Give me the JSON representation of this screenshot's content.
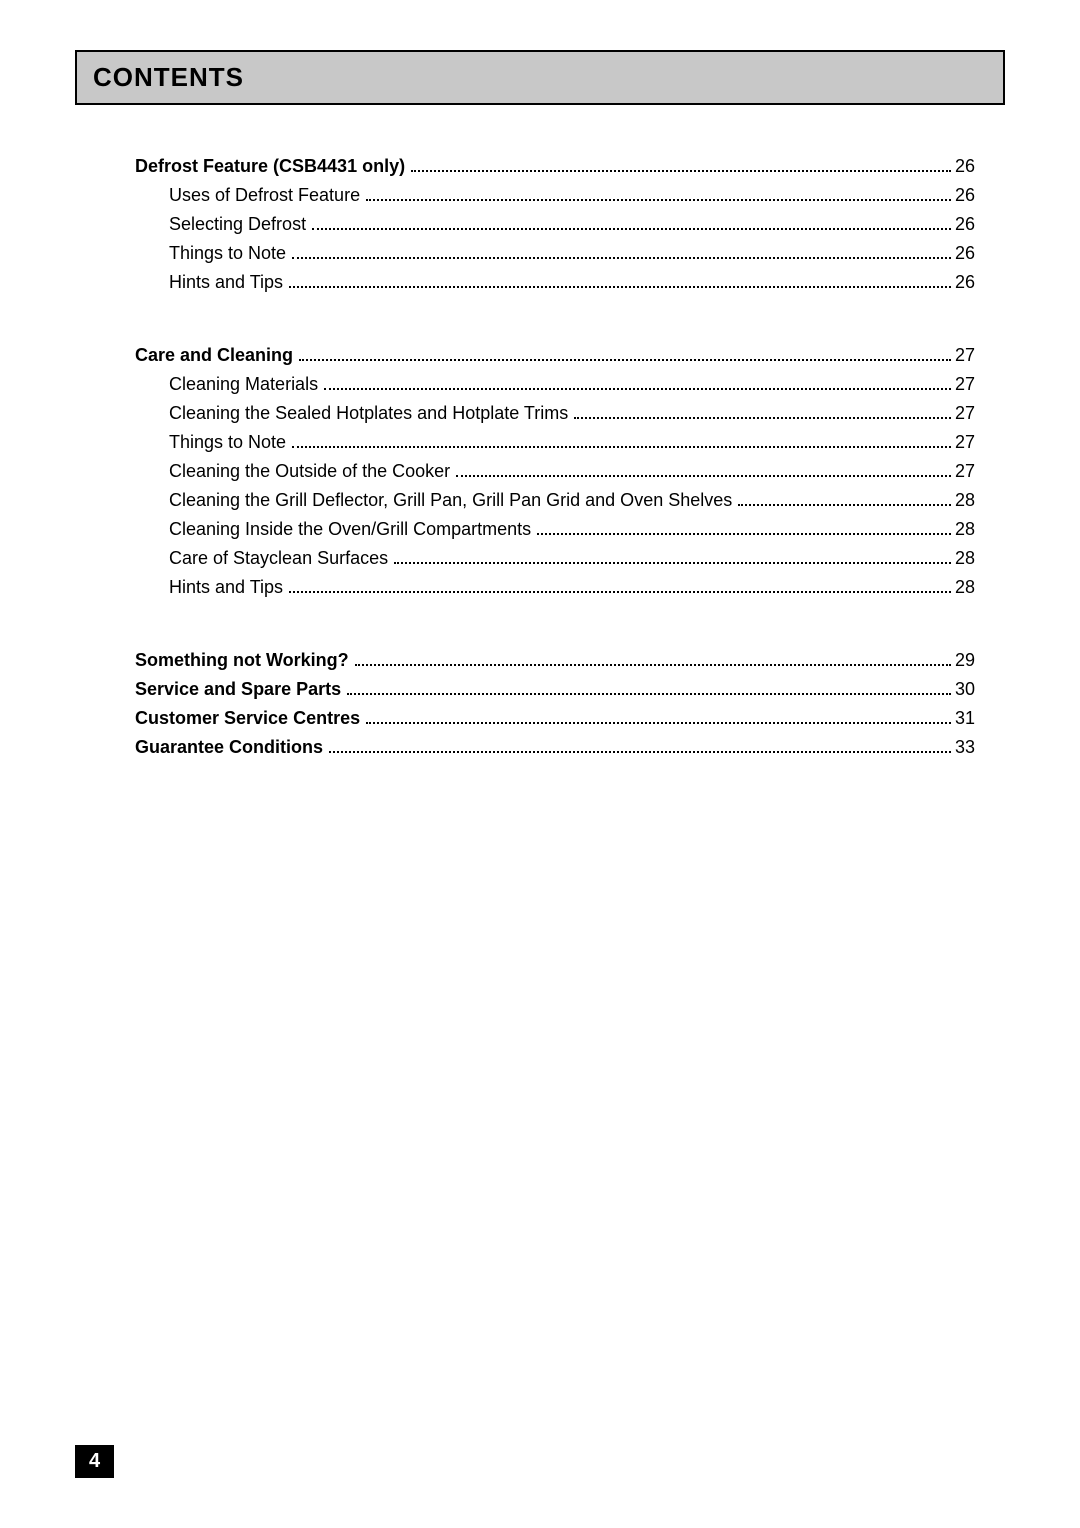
{
  "header": {
    "title": "CONTENTS"
  },
  "sections": [
    {
      "entries": [
        {
          "label": "Defrost Feature (CSB4431 only)",
          "page": "26",
          "bold": true,
          "sub": false
        },
        {
          "label": "Uses of Defrost Feature",
          "page": "26",
          "bold": false,
          "sub": true
        },
        {
          "label": "Selecting Defrost",
          "page": "26",
          "bold": false,
          "sub": true
        },
        {
          "label": "Things to Note",
          "page": "26",
          "bold": false,
          "sub": true
        },
        {
          "label": "Hints and Tips",
          "page": "26",
          "bold": false,
          "sub": true
        }
      ]
    },
    {
      "entries": [
        {
          "label": "Care and Cleaning",
          "page": "27",
          "bold": true,
          "sub": false
        },
        {
          "label": "Cleaning Materials",
          "page": "27",
          "bold": false,
          "sub": true
        },
        {
          "label": "Cleaning the Sealed Hotplates and Hotplate Trims",
          "page": "27",
          "bold": false,
          "sub": true
        },
        {
          "label": "Things to Note",
          "page": "27",
          "bold": false,
          "sub": true
        },
        {
          "label": "Cleaning the Outside of the Cooker",
          "page": "27",
          "bold": false,
          "sub": true
        },
        {
          "label": "Cleaning the Grill Deflector, Grill Pan, Grill Pan Grid and Oven Shelves",
          "page": "28",
          "bold": false,
          "sub": true
        },
        {
          "label": "Cleaning Inside the Oven/Grill Compartments",
          "page": "28",
          "bold": false,
          "sub": true
        },
        {
          "label": "Care of Stayclean Surfaces",
          "page": "28",
          "bold": false,
          "sub": true
        },
        {
          "label": "Hints and Tips",
          "page": "28",
          "bold": false,
          "sub": true
        }
      ]
    },
    {
      "entries": [
        {
          "label": "Something not Working?",
          "page": "29",
          "bold": true,
          "sub": false
        },
        {
          "label": "Service and Spare Parts",
          "page": "30",
          "bold": true,
          "sub": false
        },
        {
          "label": "Customer Service Centres",
          "page": "31",
          "bold": true,
          "sub": false
        },
        {
          "label": "Guarantee Conditions",
          "page": "33",
          "bold": true,
          "sub": false
        }
      ]
    }
  ],
  "page_number": "4",
  "colors": {
    "header_bg": "#c8c8c8",
    "border": "#000000",
    "text": "#000000",
    "pagebox_bg": "#000000",
    "pagebox_text": "#ffffff"
  },
  "font_sizes": {
    "header": 26,
    "row": 18,
    "pagebox": 20
  }
}
